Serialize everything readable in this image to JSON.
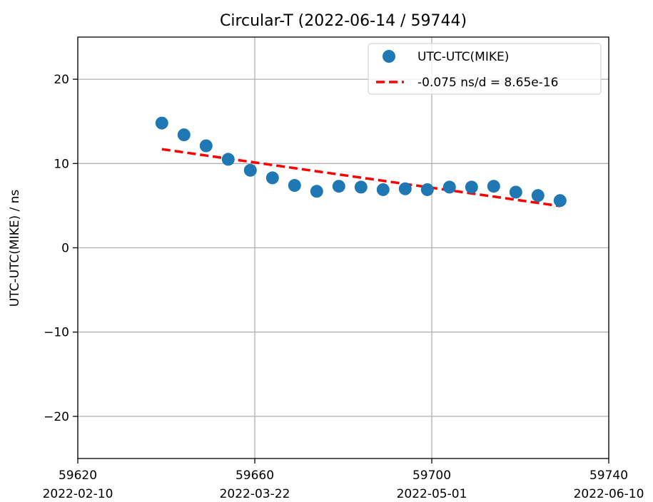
{
  "chart_data": {
    "type": "scatter",
    "title": "Circular-T  (2022-06-14 / 59744)",
    "xlabel": "",
    "ylabel": "UTC-UTC(MIKE) / ns",
    "xlim": [
      59620,
      59740
    ],
    "ylim": [
      -25,
      25
    ],
    "x_ticks": [
      {
        "mjd": "59620",
        "date": "2022-02-10"
      },
      {
        "mjd": "59660",
        "date": "2022-03-22"
      },
      {
        "mjd": "59700",
        "date": "2022-05-01"
      },
      {
        "mjd": "59740",
        "date": "2022-06-10"
      }
    ],
    "y_ticks": [
      "-20",
      "-10",
      "0",
      "10",
      "20"
    ],
    "grid": true,
    "legend_position": "top-right",
    "series": [
      {
        "name": "UTC-UTC(MIKE)",
        "kind": "scatter",
        "color": "#1f77b4",
        "x": [
          59639,
          59644,
          59649,
          59654,
          59659,
          59664,
          59669,
          59674,
          59679,
          59684,
          59689,
          59694,
          59699,
          59704,
          59709,
          59714,
          59719,
          59724,
          59729
        ],
        "y": [
          14.8,
          13.4,
          12.1,
          10.5,
          9.2,
          8.3,
          7.4,
          6.7,
          7.3,
          7.2,
          6.9,
          7.0,
          6.9,
          7.2,
          7.2,
          7.3,
          6.6,
          6.2,
          5.6
        ]
      },
      {
        "name": "-0.075 ns/d = 8.65e-16",
        "kind": "line",
        "style": "dashed",
        "color": "#ff0000",
        "x": [
          59639,
          59729
        ],
        "y": [
          11.7,
          4.95
        ]
      }
    ]
  }
}
